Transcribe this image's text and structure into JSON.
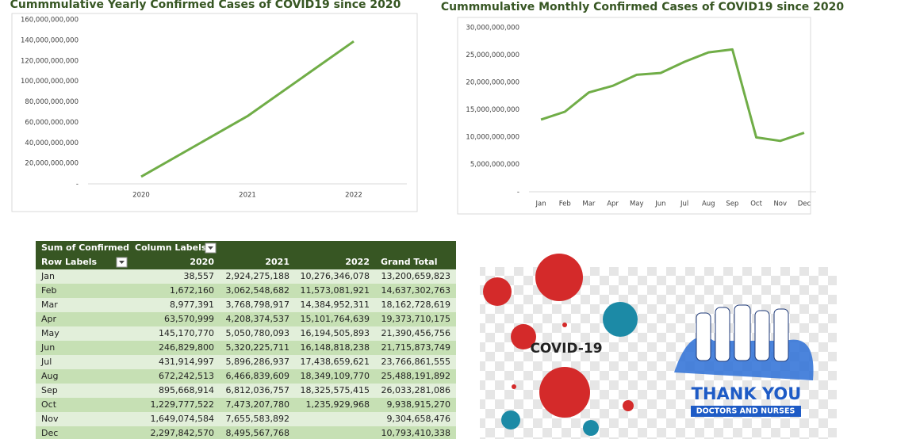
{
  "chart_data": [
    {
      "type": "line",
      "title": "Cummmulative Yearly Confirmed Cases of COVID19 since 2020",
      "categories": [
        "2020",
        "2021",
        "2022"
      ],
      "values": [
        7000000000,
        66000000000,
        139000000000
      ],
      "color": "#70ad47",
      "ylim": [
        0,
        160000000000
      ],
      "yticks": [
        {
          "value": 0,
          "label": "-"
        },
        {
          "value": 20000000000,
          "label": "20,000,000,000"
        },
        {
          "value": 40000000000,
          "label": "40,000,000,000"
        },
        {
          "value": 60000000000,
          "label": "60,000,000,000"
        },
        {
          "value": 80000000000,
          "label": "80,000,000,000"
        },
        {
          "value": 100000000000,
          "label": "100,000,000,000"
        },
        {
          "value": 120000000000,
          "label": "120,000,000,000"
        },
        {
          "value": 140000000000,
          "label": "140,000,000,000"
        },
        {
          "value": 160000000000,
          "label": "160,000,000,000"
        }
      ],
      "grid": false
    },
    {
      "type": "line",
      "title": "Cummmulative Monthly Confirmed Cases of COVID19 since 2020",
      "categories": [
        "Jan",
        "Feb",
        "Mar",
        "Apr",
        "May",
        "Jun",
        "Jul",
        "Aug",
        "Sep",
        "Oct",
        "Nov",
        "Dec"
      ],
      "values": [
        13200659823,
        14637302763,
        18162728619,
        19373710175,
        21390456756,
        21715873749,
        23766861555,
        25488191892,
        26033281086,
        9938915270,
        9304658476,
        10793410338
      ],
      "color": "#70ad47",
      "ylim": [
        0,
        30000000000
      ],
      "yticks": [
        {
          "value": 0,
          "label": "-"
        },
        {
          "value": 5000000000,
          "label": "5,000,000,000"
        },
        {
          "value": 10000000000,
          "label": "10,000,000,000"
        },
        {
          "value": 15000000000,
          "label": "15,000,000,000"
        },
        {
          "value": 20000000000,
          "label": "20,000,000,000"
        },
        {
          "value": 25000000000,
          "label": "25,000,000,000"
        },
        {
          "value": 30000000000,
          "label": "30,000,000,000"
        }
      ],
      "grid": false
    }
  ],
  "pivot_table": {
    "corner": "Sum of Confirmed",
    "column_labels": "Column Labels",
    "row_labels": "Row Labels",
    "columns": [
      "2020",
      "2021",
      "2022",
      "Grand Total"
    ],
    "rows": [
      [
        "Jan",
        "38,557",
        "2,924,275,188",
        "10,276,346,078",
        "13,200,659,823"
      ],
      [
        "Feb",
        "1,672,160",
        "3,062,548,682",
        "11,573,081,921",
        "14,637,302,763"
      ],
      [
        "Mar",
        "8,977,391",
        "3,768,798,917",
        "14,384,952,311",
        "18,162,728,619"
      ],
      [
        "Apr",
        "63,570,999",
        "4,208,374,537",
        "15,101,764,639",
        "19,373,710,175"
      ],
      [
        "May",
        "145,170,770",
        "5,050,780,093",
        "16,194,505,893",
        "21,390,456,756"
      ],
      [
        "Jun",
        "246,829,800",
        "5,320,225,711",
        "16,148,818,238",
        "21,715,873,749"
      ],
      [
        "Jul",
        "431,914,997",
        "5,896,286,937",
        "17,438,659,621",
        "23,766,861,555"
      ],
      [
        "Aug",
        "672,242,513",
        "6,466,839,609",
        "18,349,109,770",
        "25,488,191,892"
      ],
      [
        "Sep",
        "895,668,914",
        "6,812,036,757",
        "18,325,575,415",
        "26,033,281,086"
      ],
      [
        "Oct",
        "1,229,777,522",
        "7,473,207,780",
        "1,235,929,968",
        "9,938,915,270"
      ],
      [
        "Nov",
        "1,649,074,584",
        "7,655,583,892",
        null,
        "9,304,658,476"
      ],
      [
        "Dec",
        "2,297,842,570",
        "8,495,567,768",
        null,
        "10,793,410,338"
      ]
    ]
  },
  "image": {
    "label": "COVID-19",
    "headline": "THANK YOU",
    "subline": "DOCTORS AND NURSES"
  }
}
